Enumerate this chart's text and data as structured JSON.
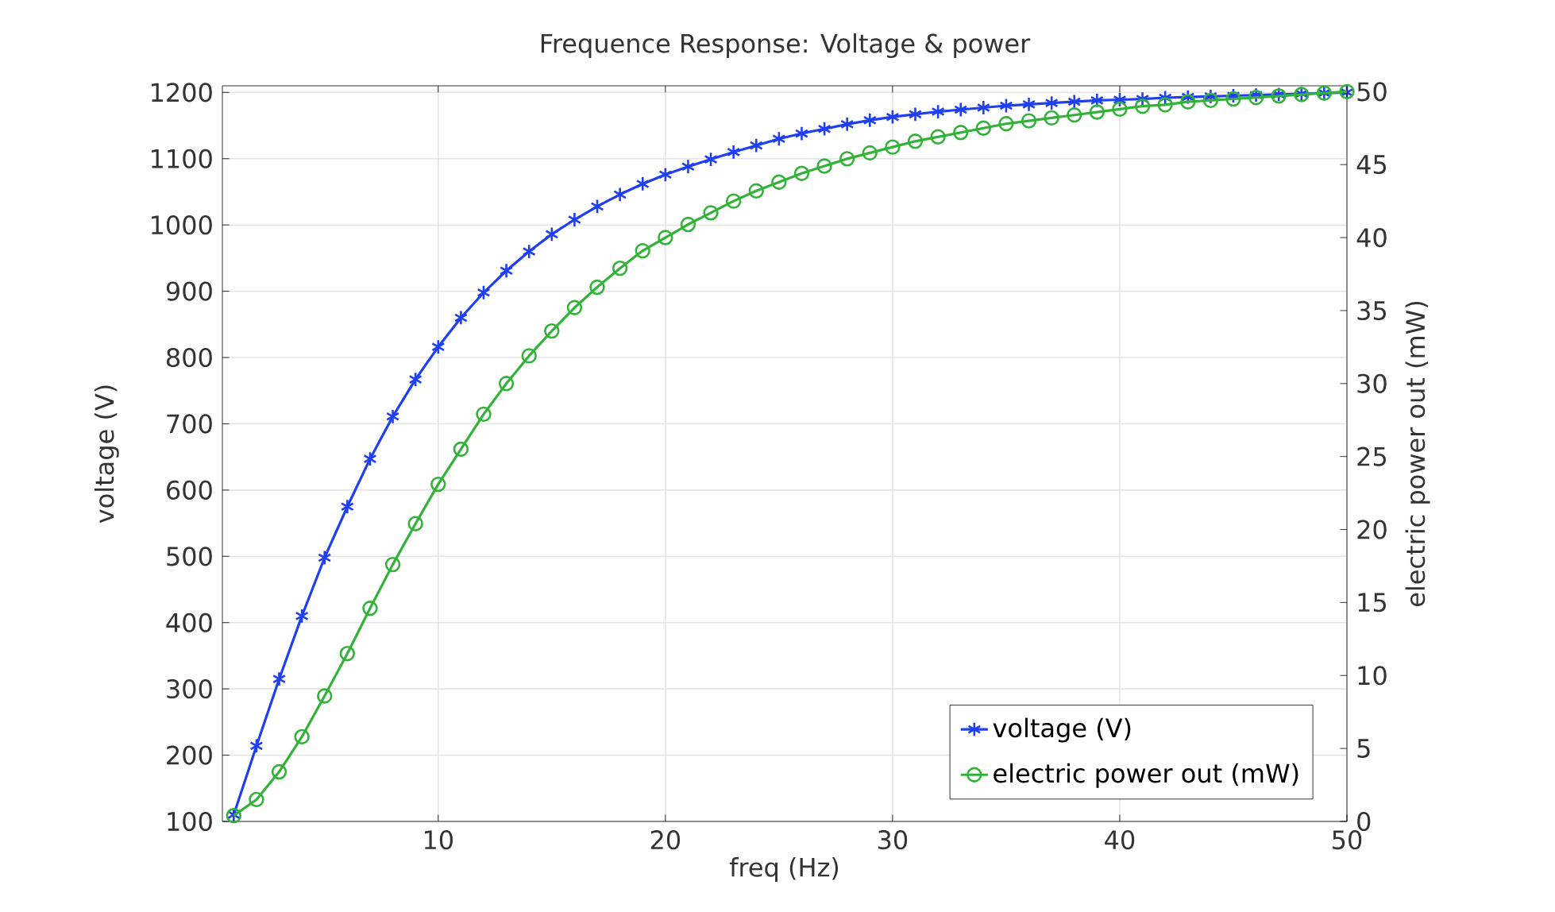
{
  "chart_data": {
    "type": "line",
    "title": "Frequence Response: Voltage & power",
    "xlabel": "freq (Hz)",
    "ylabel": "voltage (V)",
    "y2label": "electric power out (mW)",
    "x": [
      1,
      2,
      3,
      4,
      5,
      6,
      7,
      8,
      9,
      10,
      11,
      12,
      13,
      14,
      15,
      16,
      17,
      18,
      19,
      20,
      21,
      22,
      23,
      24,
      25,
      26,
      27,
      28,
      29,
      30,
      31,
      32,
      33,
      34,
      35,
      36,
      37,
      38,
      39,
      40,
      41,
      42,
      43,
      44,
      45,
      46,
      47,
      48,
      49,
      50
    ],
    "series": [
      {
        "name": "voltage (V)",
        "color": "#1f3ff5",
        "marker": "cross",
        "axis": "y",
        "values": [
          110,
          214,
          315,
          410,
          498,
          575,
          647,
          711,
          767,
          816,
          860,
          898,
          931,
          960,
          986,
          1008,
          1028,
          1046,
          1062,
          1076,
          1088,
          1099,
          1110,
          1120,
          1130,
          1138,
          1145,
          1152,
          1158,
          1163,
          1167,
          1171,
          1174,
          1177,
          1180,
          1182,
          1184,
          1186,
          1188,
          1189,
          1190,
          1192,
          1193,
          1194,
          1195,
          1196,
          1197,
          1198,
          1199,
          1200
        ]
      },
      {
        "name": "electric power out (mW)",
        "color": "#33b23a",
        "marker": "circle",
        "axis": "y2",
        "values": [
          0.4,
          1.5,
          3.4,
          5.8,
          8.6,
          11.5,
          14.6,
          17.6,
          20.4,
          23.1,
          25.5,
          27.9,
          30.0,
          31.9,
          33.6,
          35.2,
          36.6,
          37.9,
          39.1,
          40.0,
          40.9,
          41.7,
          42.5,
          43.2,
          43.8,
          44.4,
          44.9,
          45.4,
          45.8,
          46.2,
          46.6,
          46.9,
          47.2,
          47.5,
          47.8,
          48.0,
          48.2,
          48.4,
          48.6,
          48.8,
          49.0,
          49.1,
          49.3,
          49.4,
          49.5,
          49.6,
          49.7,
          49.8,
          49.9,
          50.0
        ]
      }
    ],
    "xlim": [
      0.5,
      50
    ],
    "xticks": [
      10,
      20,
      30,
      40,
      50
    ],
    "ylim": [
      100,
      1210
    ],
    "yticks": [
      100,
      200,
      300,
      400,
      500,
      600,
      700,
      800,
      900,
      1000,
      1100,
      1200
    ],
    "y2lim": [
      0,
      50.4
    ],
    "y2ticks": [
      0,
      5,
      10,
      15,
      20,
      25,
      30,
      35,
      40,
      45,
      50
    ],
    "grid": true,
    "legend": "bottom right",
    "line_style": "solid"
  }
}
